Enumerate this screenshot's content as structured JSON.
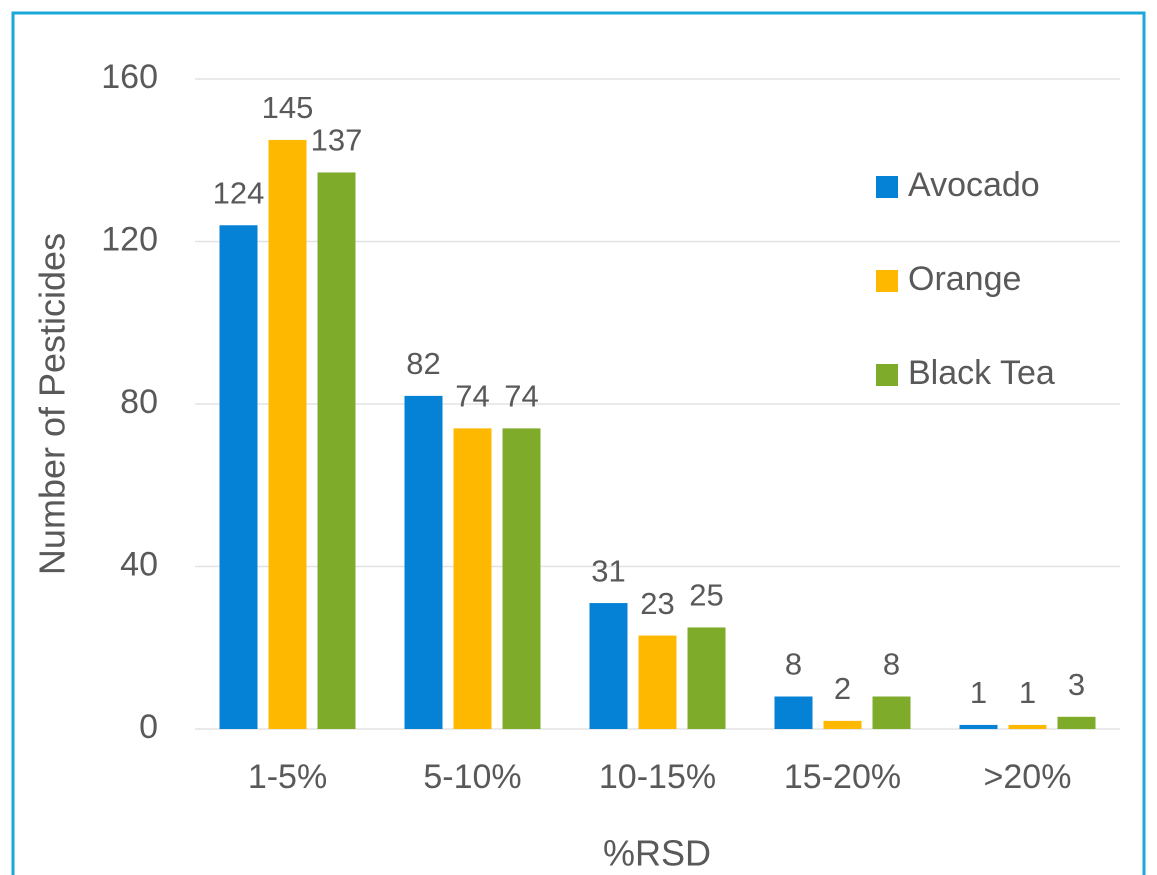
{
  "chart_data": {
    "type": "bar",
    "categories": [
      "1-5%",
      "5-10%",
      "10-15%",
      "15-20%",
      ">20%"
    ],
    "series": [
      {
        "name": "Avocado",
        "color": "#0582d6",
        "values": [
          124,
          82,
          31,
          8,
          1
        ]
      },
      {
        "name": "Orange",
        "color": "#ffb800",
        "values": [
          145,
          74,
          23,
          2,
          1
        ]
      },
      {
        "name": "Black Tea",
        "color": "#7fab2b",
        "values": [
          137,
          74,
          25,
          8,
          3
        ]
      }
    ],
    "x_label": "%RSD",
    "y_label": "Number of Pesticides",
    "ylim": [
      0,
      160
    ],
    "yticks": [
      0,
      40,
      80,
      120,
      160
    ],
    "grid": true,
    "legend": "upper right",
    "data_labels": true
  }
}
